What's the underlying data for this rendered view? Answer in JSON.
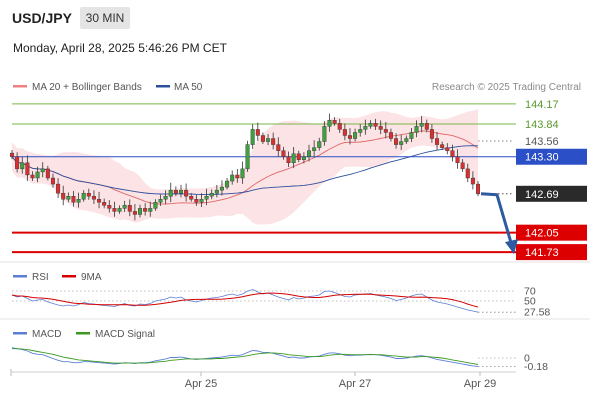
{
  "header": {
    "symbol": "USD/JPY",
    "timeframe": "30 MIN",
    "datetime": "Monday, April 28, 2025 5:46:26 PM CET"
  },
  "legend": {
    "ma20_bb": "MA 20 + Bollinger Bands",
    "ma50": "MA 50",
    "credit": "Research © 2025 Trading Central"
  },
  "colors": {
    "green_level": "#7ab648",
    "blue_level": "#2b4fc7",
    "red_level": "#dd0000",
    "current_price": "#2a2a2a",
    "arrow": "#2d5aa0",
    "bollinger_fill": "#fbd9dc",
    "ma20": "#e06868",
    "ma50": "#2c4f9e",
    "rsi": "#5b7fd6",
    "signal_9ma": "#d40000",
    "macd": "#5b7fd6",
    "macd_signal": "#3a9a20"
  },
  "rsi_panel": {
    "label": "RSI",
    "ma_label": "9MA"
  },
  "macd_panel": {
    "label": "MACD",
    "signal_label": "MACD Signal"
  },
  "chart_data": {
    "type": "candlestick",
    "instrument": "USD/JPY",
    "interval": "30 MIN",
    "x_tick_labels": [
      "Apr 25",
      "Apr 27",
      "Apr 29"
    ],
    "price_ylim": [
      141.6,
      144.3
    ],
    "levels": [
      {
        "value": 144.17,
        "label": "144.17",
        "kind": "resistance",
        "color": "#7ab648"
      },
      {
        "value": 143.84,
        "label": "143.84",
        "kind": "resistance",
        "color": "#7ab648"
      },
      {
        "value": 143.56,
        "label": "143.56",
        "kind": "reference",
        "color": "#2b4fc7"
      },
      {
        "value": 143.3,
        "label": "143.30",
        "kind": "pivot",
        "color": "#2b4fc7"
      },
      {
        "value": 142.69,
        "label": "142.69",
        "kind": "last",
        "color": "#2a2a2a"
      },
      {
        "value": 142.05,
        "label": "142.05",
        "kind": "support",
        "color": "#dd0000"
      },
      {
        "value": 141.73,
        "label": "141.73",
        "kind": "support",
        "color": "#dd0000"
      }
    ],
    "closes": [
      143.3,
      143.1,
      143.2,
      143.0,
      142.95,
      143.05,
      143.1,
      142.95,
      142.85,
      142.7,
      142.6,
      142.65,
      142.55,
      142.6,
      142.7,
      142.65,
      142.6,
      142.55,
      142.5,
      142.45,
      142.4,
      142.45,
      142.5,
      142.4,
      142.35,
      142.45,
      142.4,
      142.45,
      142.55,
      142.6,
      142.65,
      142.75,
      142.7,
      142.75,
      142.65,
      142.6,
      142.55,
      142.6,
      142.65,
      142.7,
      142.75,
      142.8,
      142.9,
      143.0,
      142.95,
      143.1,
      143.5,
      143.75,
      143.65,
      143.55,
      143.6,
      143.5,
      143.4,
      143.3,
      143.2,
      143.35,
      143.25,
      143.3,
      143.4,
      143.45,
      143.55,
      143.8,
      143.9,
      143.85,
      143.75,
      143.65,
      143.6,
      143.7,
      143.75,
      143.8,
      143.85,
      143.8,
      143.75,
      143.7,
      143.6,
      143.5,
      143.55,
      143.6,
      143.7,
      143.8,
      143.85,
      143.75,
      143.6,
      143.5,
      143.45,
      143.4,
      143.3,
      143.2,
      143.1,
      142.95,
      142.85,
      142.69
    ],
    "rsi": {
      "levels": [
        70,
        50
      ],
      "level_labels": [
        "70",
        "50"
      ],
      "last_label": "27.58",
      "ylim": [
        20,
        80
      ],
      "values": [
        62,
        58,
        60,
        55,
        50,
        52,
        53,
        48,
        45,
        42,
        40,
        42,
        40,
        43,
        47,
        45,
        44,
        42,
        41,
        40,
        39,
        42,
        45,
        41,
        40,
        44,
        43,
        45,
        50,
        52,
        54,
        58,
        56,
        58,
        52,
        50,
        48,
        51,
        54,
        56,
        57,
        59,
        62,
        64,
        61,
        64,
        70,
        73,
        68,
        64,
        66,
        62,
        58,
        55,
        52,
        57,
        54,
        56,
        59,
        60,
        62,
        69,
        70,
        67,
        63,
        59,
        58,
        62,
        63,
        64,
        65,
        62,
        60,
        58,
        55,
        51,
        53,
        56,
        60,
        63,
        64,
        58,
        52,
        48,
        46,
        44,
        41,
        38,
        35,
        32,
        30,
        27.58
      ]
    },
    "macd": {
      "zero_label": "0",
      "last_label": "-0.18",
      "ylim": [
        -0.3,
        0.3
      ],
      "macd_values": [
        0.22,
        0.2,
        0.18,
        0.15,
        0.1,
        0.08,
        0.07,
        0.03,
        -0.01,
        -0.05,
        -0.08,
        -0.08,
        -0.1,
        -0.1,
        -0.08,
        -0.08,
        -0.09,
        -0.1,
        -0.11,
        -0.12,
        -0.13,
        -0.12,
        -0.1,
        -0.11,
        -0.12,
        -0.1,
        -0.1,
        -0.09,
        -0.06,
        -0.04,
        -0.02,
        0.01,
        0.01,
        0.02,
        0.0,
        -0.02,
        -0.03,
        -0.02,
        -0.01,
        0.0,
        0.01,
        0.02,
        0.04,
        0.06,
        0.05,
        0.07,
        0.12,
        0.16,
        0.15,
        0.12,
        0.12,
        0.1,
        0.07,
        0.04,
        0.01,
        0.02,
        0.0,
        0.0,
        0.02,
        0.03,
        0.04,
        0.08,
        0.11,
        0.11,
        0.09,
        0.06,
        0.05,
        0.06,
        0.06,
        0.07,
        0.08,
        0.07,
        0.06,
        0.04,
        0.02,
        -0.01,
        -0.01,
        0.0,
        0.02,
        0.04,
        0.05,
        0.03,
        0.0,
        -0.03,
        -0.05,
        -0.07,
        -0.09,
        -0.11,
        -0.13,
        -0.15,
        -0.17,
        -0.18
      ],
      "signal_values": [
        0.2,
        0.2,
        0.19,
        0.18,
        0.16,
        0.14,
        0.12,
        0.1,
        0.08,
        0.05,
        0.02,
        0.0,
        -0.02,
        -0.04,
        -0.05,
        -0.06,
        -0.07,
        -0.08,
        -0.09,
        -0.1,
        -0.11,
        -0.11,
        -0.11,
        -0.11,
        -0.11,
        -0.11,
        -0.11,
        -0.1,
        -0.09,
        -0.08,
        -0.07,
        -0.05,
        -0.04,
        -0.03,
        -0.02,
        -0.02,
        -0.02,
        -0.02,
        -0.02,
        -0.02,
        -0.01,
        -0.01,
        0.0,
        0.01,
        0.02,
        0.03,
        0.05,
        0.07,
        0.09,
        0.1,
        0.11,
        0.11,
        0.1,
        0.09,
        0.07,
        0.06,
        0.05,
        0.04,
        0.03,
        0.03,
        0.03,
        0.04,
        0.06,
        0.07,
        0.08,
        0.08,
        0.07,
        0.07,
        0.07,
        0.07,
        0.07,
        0.07,
        0.07,
        0.06,
        0.05,
        0.04,
        0.03,
        0.02,
        0.02,
        0.02,
        0.03,
        0.03,
        0.02,
        0.01,
        0.0,
        -0.02,
        -0.04,
        -0.06,
        -0.08,
        -0.1,
        -0.12,
        -0.14
      ]
    }
  }
}
